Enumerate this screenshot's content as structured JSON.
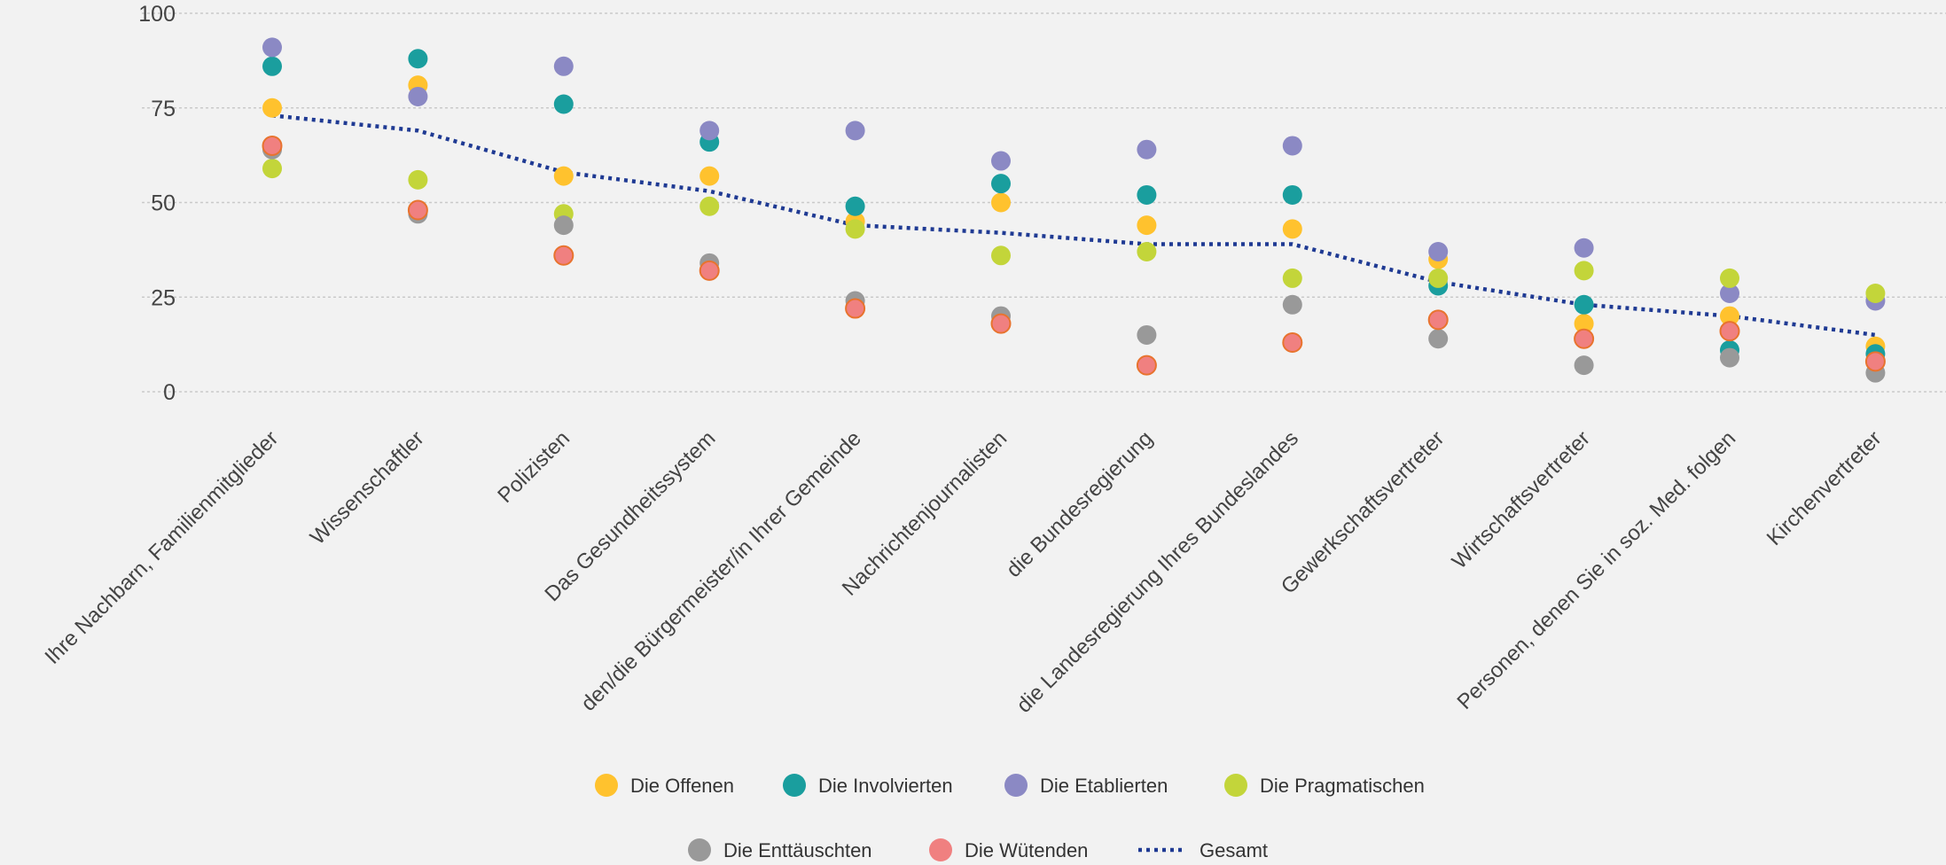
{
  "chart_data": {
    "type": "scatter",
    "categories": [
      "Ihre Nachbarn, Familienmitglieder",
      "Wissenschaftler",
      "Polizisten",
      "Das Gesundheitssystem",
      "den/die Bürgermeister/in Ihrer Gemeinde",
      "Nachrichtenjournalisten",
      "die Bundesregierung",
      "die Landesregierung Ihres Bundeslandes",
      "Gewerkschaftsvertreter",
      "Wirtschaftsvertreter",
      "Personen, denen Sie in soz. Med. folgen",
      "Kirchenvertreter"
    ],
    "ylim": [
      0,
      100
    ],
    "yticks": [
      0,
      25,
      50,
      75,
      100
    ],
    "grid": true,
    "legend_position": "bottom",
    "series": [
      {
        "name": "Die Offenen",
        "color": "#FFC22E",
        "marker": "circle",
        "values": [
          75,
          81,
          57,
          57,
          45,
          50,
          44,
          43,
          35,
          18,
          20,
          12
        ]
      },
      {
        "name": "Die Involvierten",
        "color": "#1A9E9E",
        "marker": "circle",
        "values": [
          86,
          88,
          76,
          66,
          49,
          55,
          52,
          52,
          28,
          23,
          11,
          10
        ]
      },
      {
        "name": "Die Etablierten",
        "color": "#8B89C4",
        "marker": "circle",
        "values": [
          91,
          78,
          86,
          69,
          69,
          61,
          64,
          65,
          37,
          38,
          26,
          24
        ]
      },
      {
        "name": "Die Pragmatischen",
        "color": "#C3D53A",
        "marker": "circle",
        "values": [
          59,
          56,
          47,
          49,
          43,
          36,
          37,
          30,
          30,
          32,
          30,
          26
        ]
      },
      {
        "name": "Die Enttäuschten",
        "color": "#999999",
        "marker": "circle",
        "values": [
          64,
          47,
          44,
          34,
          24,
          20,
          15,
          23,
          14,
          7,
          9,
          5
        ]
      },
      {
        "name": "Die Wütenden",
        "color": "#F08080",
        "marker": "circle-outlined",
        "values": [
          65,
          48,
          36,
          32,
          22,
          18,
          7,
          13,
          19,
          14,
          16,
          8
        ]
      },
      {
        "name": "Gesamt",
        "color": "#1F3A93",
        "marker": "dotted-line",
        "values": [
          73,
          69,
          58,
          53,
          44,
          42,
          39,
          39,
          29,
          23,
          20,
          15
        ]
      }
    ]
  }
}
